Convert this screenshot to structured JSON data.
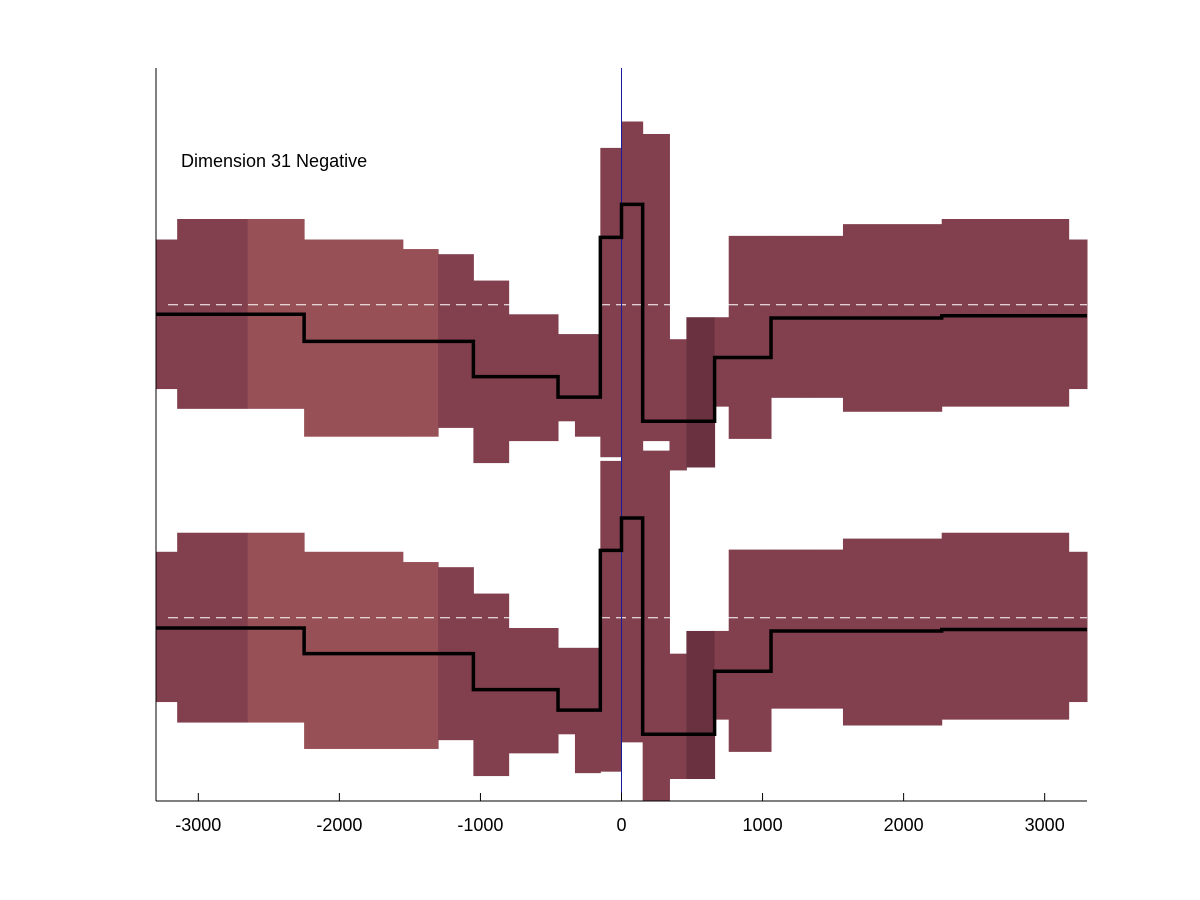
{
  "chart_data": {
    "type": "line",
    "title": "",
    "xlabel": "",
    "ylabel": "",
    "annotation": "Dimension 31 Negative",
    "xlim": [
      -3300,
      3300
    ],
    "xticks": [
      -3000,
      -2000,
      -1000,
      0,
      1000,
      2000,
      3000
    ],
    "xtick_labels": [
      "-3000",
      "-2000",
      "-1000",
      "0",
      "1000",
      "2000",
      "3000"
    ],
    "ylim": [
      0,
      1
    ],
    "y_axis_labels_shown": false,
    "grid": false,
    "legend": "none",
    "vertical_reference_line_x": 0,
    "vertical_reference_line_color": "#1a1aa0",
    "colors": {
      "band_dark": "#82404f",
      "band_medium": "#975056",
      "band_darkest": "#6a3241",
      "mean_line": "#000000",
      "baseline_dashed": "#ffffff"
    },
    "bins_x": [
      -3300,
      -3150,
      -2650,
      -2250,
      -1550,
      -1300,
      -1050,
      -800,
      -450,
      -330,
      -150,
      0,
      150,
      340,
      460,
      660,
      760,
      1060,
      1320,
      1570,
      2270,
      3170,
      3300
    ],
    "band_shades": [
      "dark",
      "dark",
      "medium",
      "medium",
      "medium",
      "dark",
      "dark",
      "dark",
      "dark",
      "dark",
      "dark",
      "dark",
      "dark",
      "dark",
      "darkest",
      "dark",
      "dark",
      "dark",
      "dark",
      "dark",
      "dark",
      "dark"
    ],
    "series": [
      {
        "baseline": 0.677,
        "mean": [
          0.664,
          0.664,
          0.664,
          0.627,
          0.627,
          0.627,
          0.579,
          0.579,
          0.551,
          0.551,
          0.769,
          0.814,
          0.518,
          0.518,
          0.518,
          0.605,
          0.605,
          0.659,
          0.659,
          0.659,
          0.662,
          0.662
        ],
        "lower": [
          0.562,
          0.535,
          0.535,
          0.497,
          0.497,
          0.509,
          0.461,
          0.491,
          0.518,
          0.497,
          0.469,
          0.5,
          0.491,
          0.451,
          0.455,
          0.538,
          0.494,
          0.55,
          0.55,
          0.531,
          0.538,
          0.562
        ],
        "upper": [
          0.766,
          0.794,
          0.794,
          0.766,
          0.753,
          0.746,
          0.71,
          0.664,
          0.637,
          0.637,
          0.891,
          0.927,
          0.91,
          0.63,
          0.66,
          0.66,
          0.771,
          0.771,
          0.771,
          0.787,
          0.794,
          0.766
        ]
      },
      {
        "baseline": 0.25,
        "mean": [
          0.236,
          0.236,
          0.236,
          0.201,
          0.201,
          0.201,
          0.152,
          0.152,
          0.124,
          0.124,
          0.342,
          0.386,
          0.091,
          0.091,
          0.091,
          0.177,
          0.177,
          0.232,
          0.232,
          0.232,
          0.234,
          0.234
        ],
        "lower": [
          0.135,
          0.107,
          0.107,
          0.071,
          0.071,
          0.083,
          0.034,
          0.065,
          0.091,
          0.038,
          0.04,
          0.08,
          0,
          0.03,
          0.03,
          0.111,
          0.067,
          0.126,
          0.126,
          0.103,
          0.111,
          0.135
        ],
        "upper": [
          0.34,
          0.366,
          0.366,
          0.34,
          0.326,
          0.319,
          0.283,
          0.236,
          0.209,
          0.209,
          0.464,
          0.5,
          0.478,
          0.201,
          0.232,
          0.232,
          0.343,
          0.343,
          0.343,
          0.358,
          0.366,
          0.34
        ]
      }
    ]
  }
}
